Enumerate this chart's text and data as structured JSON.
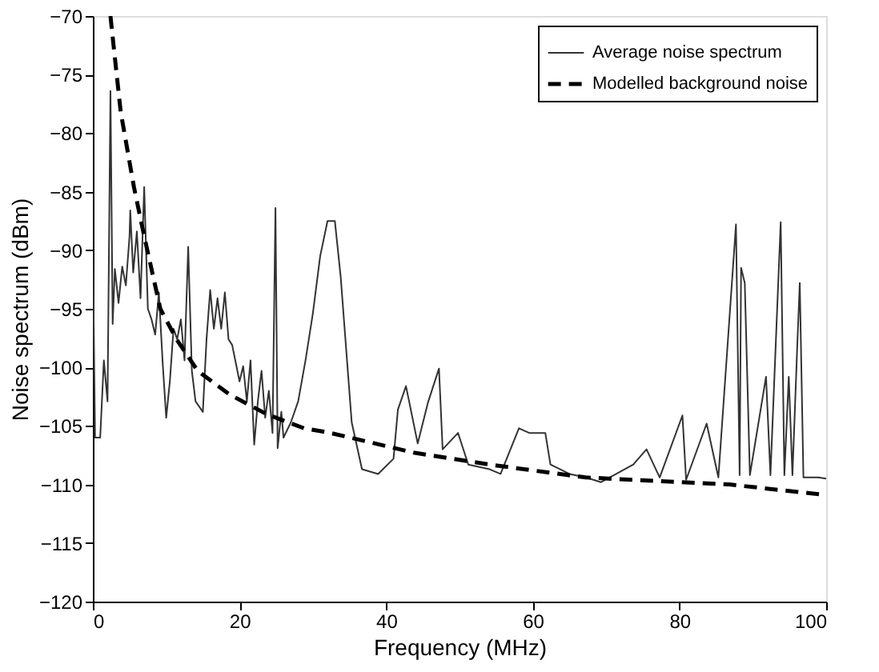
{
  "chart_data": {
    "type": "line",
    "xlabel": "Frequency (MHz)",
    "ylabel": "Noise spectrum (dBm)",
    "xlim": [
      0,
      100
    ],
    "ylim": [
      -120,
      -70
    ],
    "xticks": [
      0,
      20,
      40,
      60,
      80,
      100
    ],
    "yticks": [
      -120,
      -115,
      -110,
      -105,
      -100,
      -95,
      -90,
      -85,
      -80,
      -75,
      -70
    ],
    "grid": false,
    "legend": "top right",
    "series": [
      {
        "name": "Average noise spectrum",
        "color": "#333333",
        "line_style": "solid",
        "x": [
          0,
          0.3,
          1,
          1.5,
          2,
          2.4,
          2.7,
          3,
          3.5,
          4,
          4.5,
          5,
          5.1,
          5.5,
          6,
          6.5,
          7,
          7.5,
          8,
          8.5,
          9,
          9.5,
          10,
          10.5,
          11,
          11.5,
          12,
          12.5,
          13,
          13.5,
          14,
          15,
          15.5,
          16,
          16.5,
          17,
          17.5,
          18,
          18.5,
          19,
          20,
          20.5,
          21,
          21.5,
          22,
          22.5,
          23,
          23.5,
          24,
          24.5,
          24.9,
          25.2,
          25.7,
          26,
          27,
          28,
          29,
          30,
          31,
          32,
          33,
          33.8,
          35.3,
          36.7,
          38.9,
          41,
          41.6,
          42.7,
          44.3,
          45.7,
          47.2,
          47.7,
          49.8,
          51.2,
          54.1,
          55.6,
          58.1,
          59.5,
          61.7,
          62.4,
          65,
          67.2,
          69.3,
          73.7,
          75.5,
          77.3,
          80.4,
          80.9,
          83.7,
          85.3,
          87.7,
          88.2,
          88.4,
          88.9,
          89.6,
          91.8,
          92.4,
          93.8,
          94.3,
          94.9,
          95.4,
          96.1,
          96.4,
          96.9,
          98.9,
          100
        ],
        "values": [
          -90.2,
          -106,
          -106,
          -99.4,
          -102.9,
          -76.4,
          -96.3,
          -91.6,
          -94.5,
          -91.4,
          -93,
          -88.8,
          -86.6,
          -91.9,
          -88.4,
          -94.1,
          -84.6,
          -95,
          -95.9,
          -97.2,
          -93.6,
          -99.4,
          -104.3,
          -101.2,
          -96.7,
          -97.6,
          -95.9,
          -99.4,
          -89.7,
          -100.3,
          -102.9,
          -103.8,
          -97.6,
          -93.4,
          -96.7,
          -94.1,
          -96.7,
          -93.6,
          -97.6,
          -98.1,
          -101.2,
          -99.9,
          -102.9,
          -99.4,
          -106.6,
          -102.9,
          -100.3,
          -104.3,
          -102,
          -105.6,
          -86.4,
          -106.9,
          -103.8,
          -106,
          -104.7,
          -102.9,
          -99.4,
          -95.4,
          -90.5,
          -87.5,
          -87.5,
          -92.3,
          -104.7,
          -108.7,
          -109.1,
          -107.8,
          -103.6,
          -101.6,
          -106.5,
          -103,
          -100.1,
          -107,
          -105.6,
          -108.3,
          -108.7,
          -109.1,
          -105.2,
          -105.6,
          -105.6,
          -108.3,
          -109.1,
          -109.4,
          -109.8,
          -108.3,
          -107,
          -109.4,
          -104.1,
          -109.6,
          -104.8,
          -109.4,
          -87.8,
          -109.2,
          -91.5,
          -92.8,
          -109.2,
          -100.8,
          -109.2,
          -87.6,
          -109.2,
          -100.8,
          -109.2,
          -97.5,
          -92.8,
          -109.4,
          -109.4,
          -109.5
        ]
      },
      {
        "name": "Modelled background noise",
        "color": "#000000",
        "line_style": "dashed",
        "x": [
          2.4,
          2.7,
          3.8,
          5.6,
          7,
          9.2,
          11.4,
          14.3,
          18.6,
          23.7,
          28.8,
          32.4,
          43.9,
          54.1,
          67.2,
          86.8,
          100
        ],
        "values": [
          -70,
          -71.8,
          -78.2,
          -84.6,
          -88.8,
          -95,
          -97.6,
          -100.3,
          -102.3,
          -104,
          -105.2,
          -105.6,
          -107.3,
          -108.3,
          -109.4,
          -110,
          -110.9
        ]
      }
    ]
  }
}
